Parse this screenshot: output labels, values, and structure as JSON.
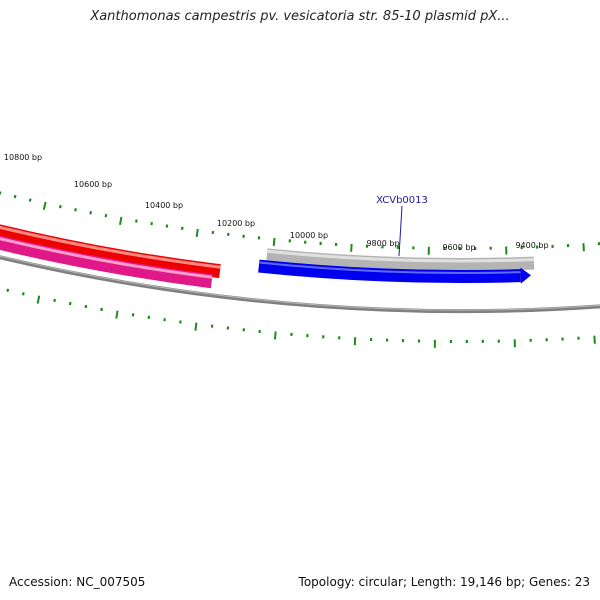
{
  "title": "Xanthomonas campestris pv. vesicatoria str. 85-10 plasmid pX...",
  "footer": {
    "accession": "Accession: NC_007505",
    "summary": "Topology: circular; Length: 19,146 bp; Genes: 23"
  },
  "colors": {
    "ticks": "#1e8a1e",
    "backbone": "#808080",
    "gene_red": "#ee0000",
    "gene_pink": "#e01888",
    "gene_gray": "#b4b4b4",
    "gene_blue": "#0000ee",
    "gene_label": "#1a1aa8"
  },
  "tick_labels": [
    "10800 bp",
    "10600 bp",
    "10400 bp",
    "10200 bp",
    "10000 bp",
    "9800 bp",
    "9600 bp",
    "9400 bp"
  ],
  "gene_label": "XCVb0013"
}
